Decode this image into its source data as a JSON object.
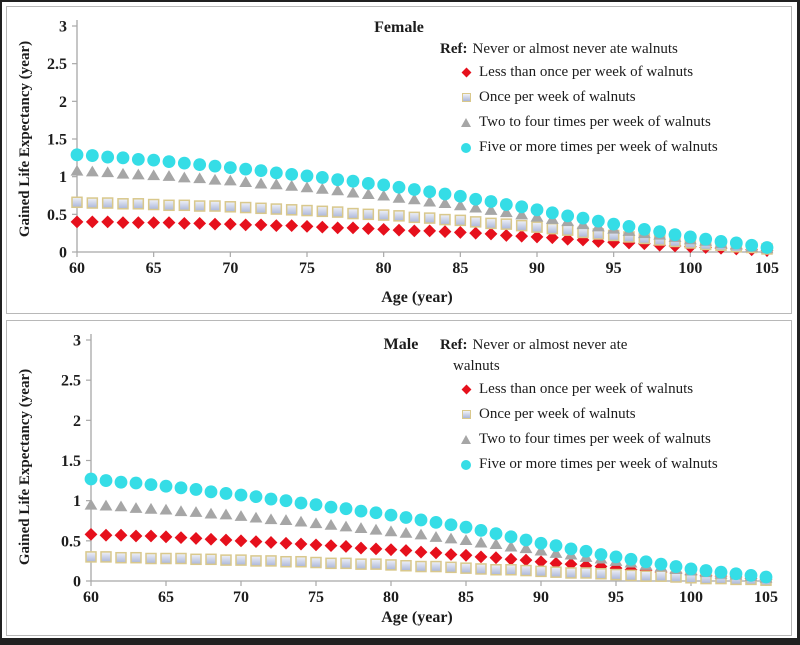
{
  "figure": {
    "background": "#ffffff",
    "frame_color": "#212121",
    "panel_border_color": "#b8b8b8",
    "axis_color": "#a8a8a8",
    "text_color": "#1c1c1c"
  },
  "chart_data": [
    {
      "type": "scatter",
      "title": "Female",
      "xlabel": "Age (year)",
      "ylabel": "Gained Life Expectancy (year)",
      "xlim": [
        60,
        105
      ],
      "ylim": [
        0,
        3
      ],
      "x_ticks": [
        60,
        65,
        70,
        75,
        80,
        85,
        90,
        95,
        100,
        105
      ],
      "y_ticks": [
        0,
        0.5,
        1,
        1.5,
        2,
        2.5,
        3
      ],
      "grid": false,
      "legend_position": "upper right inside",
      "ref_label": "Ref:",
      "ref_lines": [
        "Never or almost never ate walnuts"
      ],
      "x": [
        60,
        61,
        62,
        63,
        64,
        65,
        66,
        67,
        68,
        69,
        70,
        71,
        72,
        73,
        74,
        75,
        76,
        77,
        78,
        79,
        80,
        81,
        82,
        83,
        84,
        85,
        86,
        87,
        88,
        89,
        90,
        91,
        92,
        93,
        94,
        95,
        96,
        97,
        98,
        99,
        100,
        101,
        102,
        103,
        104,
        105
      ],
      "series": [
        {
          "name": "Less than once per week of walnuts",
          "marker": "diamond",
          "color": "#e6101c",
          "values": [
            0.4,
            0.4,
            0.4,
            0.39,
            0.39,
            0.39,
            0.39,
            0.38,
            0.38,
            0.37,
            0.37,
            0.36,
            0.36,
            0.35,
            0.35,
            0.34,
            0.33,
            0.32,
            0.32,
            0.31,
            0.3,
            0.29,
            0.28,
            0.28,
            0.27,
            0.26,
            0.25,
            0.24,
            0.22,
            0.21,
            0.2,
            0.19,
            0.17,
            0.16,
            0.14,
            0.13,
            0.12,
            0.11,
            0.09,
            0.08,
            0.07,
            0.06,
            0.05,
            0.04,
            0.03,
            0.02
          ]
        },
        {
          "name": "Once per week of walnuts",
          "marker": "square",
          "color": "#c2cbe5",
          "border": "#d9c88c",
          "values": [
            0.66,
            0.65,
            0.65,
            0.64,
            0.64,
            0.63,
            0.62,
            0.62,
            0.61,
            0.61,
            0.6,
            0.59,
            0.58,
            0.57,
            0.56,
            0.55,
            0.54,
            0.53,
            0.51,
            0.5,
            0.49,
            0.48,
            0.46,
            0.45,
            0.43,
            0.42,
            0.4,
            0.38,
            0.37,
            0.35,
            0.33,
            0.31,
            0.29,
            0.26,
            0.24,
            0.22,
            0.2,
            0.18,
            0.16,
            0.14,
            0.12,
            0.1,
            0.09,
            0.07,
            0.06,
            0.04
          ]
        },
        {
          "name": "Two to four times per week of walnuts",
          "marker": "triangle",
          "color": "#a6a6a6",
          "values": [
            1.08,
            1.07,
            1.06,
            1.04,
            1.03,
            1.02,
            1.01,
            0.99,
            0.98,
            0.96,
            0.95,
            0.93,
            0.91,
            0.9,
            0.88,
            0.86,
            0.84,
            0.82,
            0.79,
            0.77,
            0.75,
            0.72,
            0.7,
            0.67,
            0.65,
            0.62,
            0.59,
            0.56,
            0.53,
            0.5,
            0.47,
            0.44,
            0.41,
            0.37,
            0.34,
            0.31,
            0.28,
            0.25,
            0.23,
            0.2,
            0.17,
            0.15,
            0.12,
            0.1,
            0.07,
            0.05
          ]
        },
        {
          "name": "Five or more times per week of walnuts",
          "marker": "circle",
          "color": "#35dde6",
          "values": [
            1.29,
            1.28,
            1.26,
            1.25,
            1.23,
            1.22,
            1.2,
            1.18,
            1.16,
            1.14,
            1.12,
            1.1,
            1.08,
            1.05,
            1.03,
            1.01,
            0.99,
            0.96,
            0.94,
            0.91,
            0.89,
            0.86,
            0.83,
            0.8,
            0.77,
            0.74,
            0.7,
            0.67,
            0.63,
            0.6,
            0.56,
            0.52,
            0.48,
            0.45,
            0.41,
            0.37,
            0.34,
            0.3,
            0.27,
            0.23,
            0.2,
            0.17,
            0.14,
            0.12,
            0.09,
            0.06
          ]
        }
      ]
    },
    {
      "type": "scatter",
      "title": "Male",
      "xlabel": "Age (year)",
      "ylabel": "Gained Life Expectancy (year)",
      "xlim": [
        60,
        105
      ],
      "ylim": [
        0,
        3
      ],
      "x_ticks": [
        60,
        65,
        70,
        75,
        80,
        85,
        90,
        95,
        100,
        105
      ],
      "y_ticks": [
        0,
        0.5,
        1,
        1.5,
        2,
        2.5,
        3
      ],
      "grid": false,
      "legend_position": "upper right inside",
      "ref_label": "Ref:",
      "ref_lines": [
        "Never or almost never ate",
        "walnuts"
      ],
      "x": [
        60,
        61,
        62,
        63,
        64,
        65,
        66,
        67,
        68,
        69,
        70,
        71,
        72,
        73,
        74,
        75,
        76,
        77,
        78,
        79,
        80,
        81,
        82,
        83,
        84,
        85,
        86,
        87,
        88,
        89,
        90,
        91,
        92,
        93,
        94,
        95,
        96,
        97,
        98,
        99,
        100,
        101,
        102,
        103,
        104,
        105
      ],
      "series": [
        {
          "name": "Less than once per week of walnuts",
          "marker": "diamond",
          "color": "#e6101c",
          "values": [
            0.58,
            0.57,
            0.57,
            0.56,
            0.56,
            0.55,
            0.54,
            0.53,
            0.52,
            0.51,
            0.5,
            0.49,
            0.48,
            0.47,
            0.46,
            0.45,
            0.44,
            0.43,
            0.41,
            0.4,
            0.39,
            0.38,
            0.36,
            0.35,
            0.33,
            0.32,
            0.3,
            0.29,
            0.27,
            0.26,
            0.24,
            0.22,
            0.21,
            0.19,
            0.18,
            0.16,
            0.14,
            0.13,
            0.11,
            0.1,
            0.08,
            0.07,
            0.06,
            0.05,
            0.03,
            0.02
          ]
        },
        {
          "name": "Once per week of walnuts",
          "marker": "square",
          "color": "#c2cbe5",
          "border": "#d9c88c",
          "values": [
            0.3,
            0.3,
            0.29,
            0.29,
            0.28,
            0.28,
            0.28,
            0.27,
            0.27,
            0.26,
            0.26,
            0.25,
            0.25,
            0.24,
            0.24,
            0.23,
            0.22,
            0.22,
            0.21,
            0.21,
            0.2,
            0.19,
            0.18,
            0.18,
            0.17,
            0.16,
            0.15,
            0.14,
            0.14,
            0.13,
            0.12,
            0.11,
            0.1,
            0.1,
            0.09,
            0.08,
            0.07,
            0.06,
            0.06,
            0.05,
            0.04,
            0.03,
            0.03,
            0.02,
            0.02,
            0.01
          ]
        },
        {
          "name": "Two to four times per week of walnuts",
          "marker": "triangle",
          "color": "#a6a6a6",
          "values": [
            0.95,
            0.94,
            0.93,
            0.91,
            0.9,
            0.89,
            0.87,
            0.86,
            0.84,
            0.83,
            0.81,
            0.79,
            0.77,
            0.76,
            0.74,
            0.72,
            0.7,
            0.68,
            0.66,
            0.64,
            0.62,
            0.6,
            0.58,
            0.55,
            0.53,
            0.51,
            0.48,
            0.46,
            0.43,
            0.41,
            0.38,
            0.35,
            0.33,
            0.3,
            0.28,
            0.25,
            0.23,
            0.2,
            0.18,
            0.15,
            0.13,
            0.11,
            0.09,
            0.08,
            0.06,
            0.04
          ]
        },
        {
          "name": "Five or more times per week of walnuts",
          "marker": "circle",
          "color": "#35dde6",
          "values": [
            1.27,
            1.25,
            1.23,
            1.22,
            1.2,
            1.18,
            1.16,
            1.14,
            1.11,
            1.09,
            1.07,
            1.05,
            1.02,
            1.0,
            0.97,
            0.95,
            0.92,
            0.9,
            0.87,
            0.85,
            0.82,
            0.79,
            0.76,
            0.73,
            0.7,
            0.67,
            0.63,
            0.59,
            0.55,
            0.51,
            0.47,
            0.44,
            0.4,
            0.37,
            0.33,
            0.3,
            0.27,
            0.24,
            0.21,
            0.18,
            0.15,
            0.13,
            0.11,
            0.09,
            0.07,
            0.05
          ]
        }
      ]
    }
  ]
}
